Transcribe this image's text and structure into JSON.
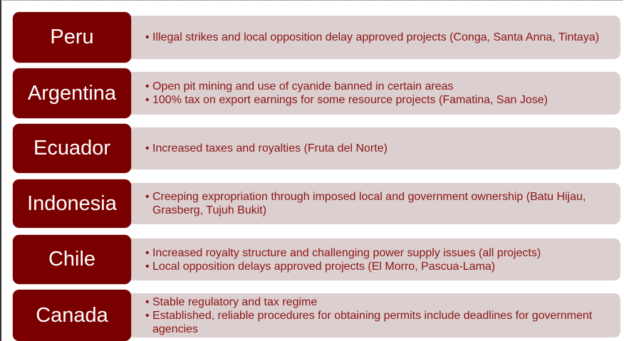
{
  "rows": [
    {
      "country": "Peru",
      "bullets": [
        "Illegal strikes and local opposition delay approved projects (Conga, Santa Anna, Tintaya)"
      ]
    },
    {
      "country": "Argentina",
      "bullets": [
        "Open pit mining and use of cyanide banned in certain areas",
        "100% tax on export earnings for some resource projects (Famatina, San Jose)"
      ]
    },
    {
      "country": "Ecuador",
      "bullets": [
        "Increased taxes and royalties (Fruta del Norte)"
      ]
    },
    {
      "country": "Indonesia",
      "bullets": [
        "Creeping expropriation through imposed local and government ownership (Batu Hijau, Grasberg, Tujuh Bukit)"
      ]
    },
    {
      "country": "Chile",
      "bullets": [
        "Increased royalty structure and challenging power supply issues (all projects)",
        "Local opposition delays approved projects (El Morro, Pascua-Lama)"
      ]
    },
    {
      "country": "Canada",
      "bullets": [
        "Stable regulatory and tax regime",
        "Established, reliable procedures for obtaining permits include deadlines for government agencies"
      ]
    }
  ],
  "colors": {
    "label_bg": "#7a0000",
    "panel_bg": "#dccfd0",
    "text": "#8b1515"
  }
}
